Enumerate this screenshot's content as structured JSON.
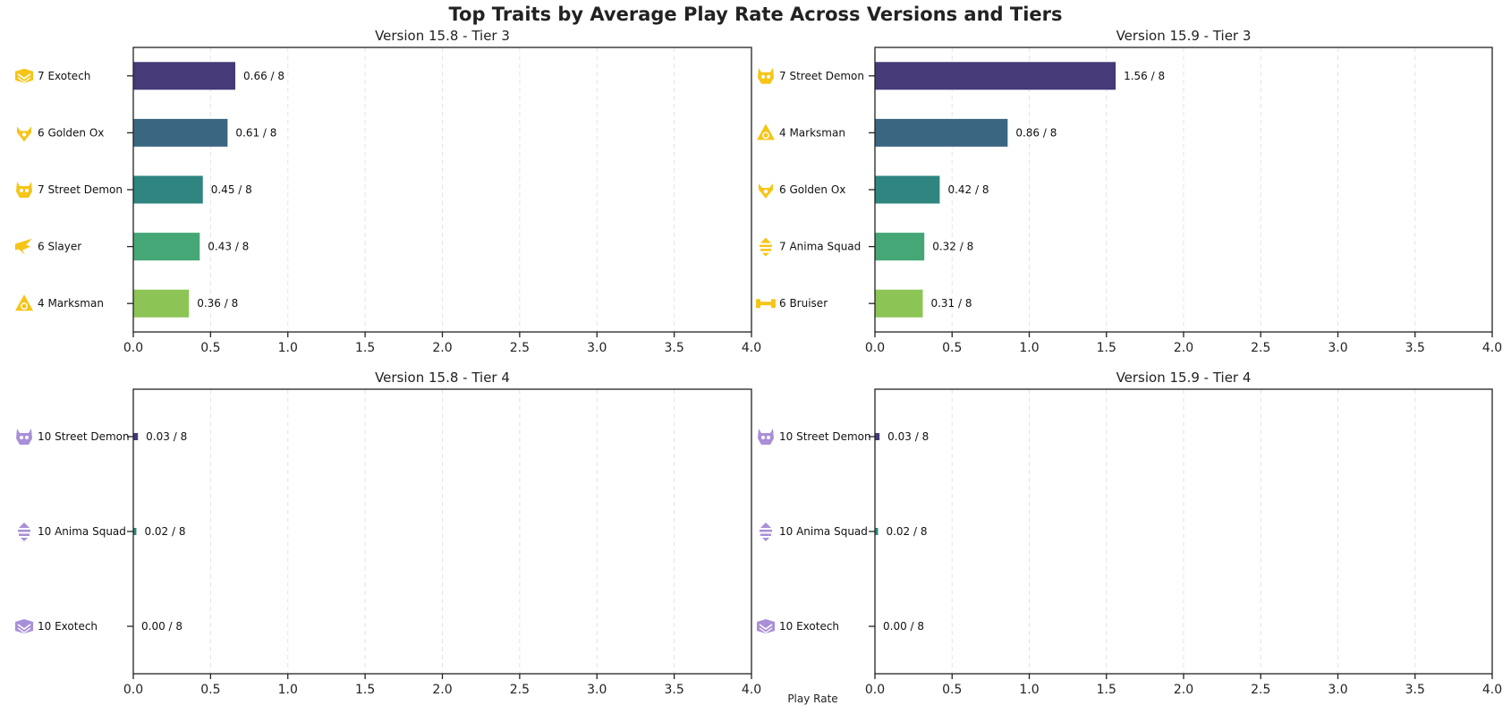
{
  "title": "Top Traits by Average Play Rate Across Versions and Tiers",
  "xlabel_common": "Play Rate",
  "colors": {
    "tier3_icon": "#f5c518",
    "tier4_icon": "#a98fd8",
    "grid": "#e3e3e3",
    "axis": "#222222",
    "bar_shades_5": [
      "#463a78",
      "#3b6682",
      "#2f8580",
      "#46a776",
      "#8cc556"
    ],
    "bar_shades_3": [
      "#463a78",
      "#2f8580",
      "#8cc556"
    ]
  },
  "chart_data": [
    {
      "type": "bar",
      "orientation": "horizontal",
      "title": "Version 15.8 - Tier 3",
      "categories": [
        "7 Exotech",
        "6 Golden Ox",
        "7 Street Demon",
        "6 Slayer",
        "4 Marksman"
      ],
      "values": [
        0.66,
        0.61,
        0.45,
        0.43,
        0.36
      ],
      "value_labels": [
        "0.66 / 8",
        "0.61 / 8",
        "0.45 / 8",
        "0.43 / 8",
        "0.36 / 8"
      ],
      "icons": [
        "exotech-icon",
        "golden-ox-icon",
        "street-demon-icon",
        "slayer-icon",
        "marksman-icon"
      ],
      "tier": 3,
      "xlim": [
        0,
        4.0
      ],
      "xticks": [
        "0.0",
        "0.5",
        "1.0",
        "1.5",
        "2.0",
        "2.5",
        "3.0",
        "3.5",
        "4.0"
      ],
      "grid": "vertical dashed"
    },
    {
      "type": "bar",
      "orientation": "horizontal",
      "title": "Version 15.9 - Tier 3",
      "categories": [
        "7 Street Demon",
        "4 Marksman",
        "6 Golden Ox",
        "7 Anima Squad",
        "6 Bruiser"
      ],
      "values": [
        1.56,
        0.86,
        0.42,
        0.32,
        0.31
      ],
      "value_labels": [
        "1.56 / 8",
        "0.86 / 8",
        "0.42 / 8",
        "0.32 / 8",
        "0.31 / 8"
      ],
      "icons": [
        "street-demon-icon",
        "marksman-icon",
        "golden-ox-icon",
        "anima-squad-icon",
        "bruiser-icon"
      ],
      "tier": 3,
      "xlim": [
        0,
        4.0
      ],
      "xticks": [
        "0.0",
        "0.5",
        "1.0",
        "1.5",
        "2.0",
        "2.5",
        "3.0",
        "3.5",
        "4.0"
      ],
      "grid": "vertical dashed"
    },
    {
      "type": "bar",
      "orientation": "horizontal",
      "title": "Version 15.8 - Tier 4",
      "categories": [
        "10 Street Demon",
        "10 Anima Squad",
        "10 Exotech"
      ],
      "values": [
        0.03,
        0.02,
        0.0
      ],
      "value_labels": [
        "0.03 / 8",
        "0.02 / 8",
        "0.00 / 8"
      ],
      "icons": [
        "street-demon-icon",
        "anima-squad-icon",
        "exotech-icon"
      ],
      "tier": 4,
      "xlim": [
        0,
        4.0
      ],
      "xticks": [
        "0.0",
        "0.5",
        "1.0",
        "1.5",
        "2.0",
        "2.5",
        "3.0",
        "3.5",
        "4.0"
      ],
      "grid": "vertical dashed"
    },
    {
      "type": "bar",
      "orientation": "horizontal",
      "title": "Version 15.9 - Tier 4",
      "categories": [
        "10 Street Demon",
        "10 Anima Squad",
        "10 Exotech"
      ],
      "values": [
        0.03,
        0.02,
        0.0
      ],
      "value_labels": [
        "0.03 / 8",
        "0.02 / 8",
        "0.00 / 8"
      ],
      "icons": [
        "street-demon-icon",
        "anima-squad-icon",
        "exotech-icon"
      ],
      "tier": 4,
      "xlim": [
        0,
        4.0
      ],
      "xticks": [
        "0.0",
        "0.5",
        "1.0",
        "1.5",
        "2.0",
        "2.5",
        "3.0",
        "3.5",
        "4.0"
      ],
      "grid": "vertical dashed"
    }
  ]
}
